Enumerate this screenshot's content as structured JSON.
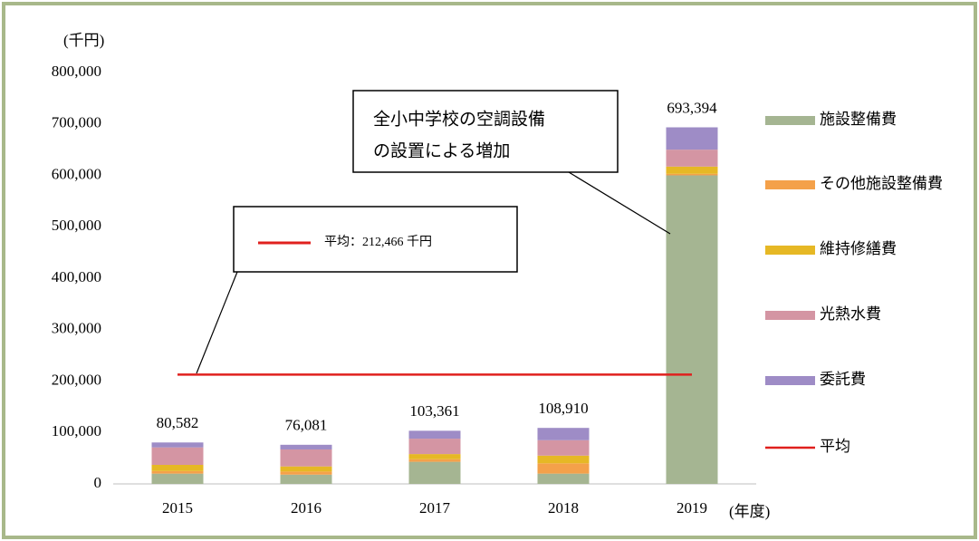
{
  "chart_data": {
    "type": "stacked_bar",
    "y_unit_label": "(千円)",
    "x_unit_label": "(年度)",
    "categories": [
      "2015",
      "2016",
      "2017",
      "2018",
      "2019"
    ],
    "series": [
      {
        "name": "施設整備費",
        "color": "#a5b592",
        "values": [
          20000,
          18000,
          43000,
          20000,
          600000
        ]
      },
      {
        "name": "その他施設整備費",
        "color": "#f4a14a",
        "values": [
          5000,
          6000,
          5000,
          20000,
          3000
        ]
      },
      {
        "name": "維持修繕費",
        "color": "#e6b825",
        "values": [
          12000,
          10000,
          10000,
          15000,
          14000
        ]
      },
      {
        "name": "光熱水費",
        "color": "#d495a3",
        "values": [
          34000,
          33000,
          30000,
          30000,
          33000
        ]
      },
      {
        "name": "委託費",
        "color": "#9e8cc6",
        "values": [
          9582,
          9081,
          15361,
          23910,
          43394
        ]
      }
    ],
    "totals": [
      80582,
      76081,
      103361,
      108910,
      693394
    ],
    "total_labels": [
      "80,582",
      "76,081",
      "103,361",
      "108,910",
      "693,394"
    ],
    "average": {
      "name": "平均",
      "value": 212466,
      "color": "#e0201e"
    },
    "annotations": [
      {
        "text": "平均：212,466 千円"
      },
      {
        "lines": [
          "全小中学校の空調設備",
          "の設置による増加"
        ]
      }
    ],
    "ylim": [
      0,
      800000
    ],
    "yticks": [
      0,
      {
        "value": 100000,
        "label": "100,000"
      },
      {
        "value": 200000,
        "label": "200,000"
      },
      {
        "value": 300000,
        "label": "300,000"
      },
      {
        "value": 400000,
        "label": "400,000"
      },
      {
        "value": 500000,
        "label": "500,000"
      },
      {
        "value": 600000,
        "label": "600,000"
      },
      {
        "value": 700000,
        "label": "700,000"
      },
      {
        "value": 800000,
        "label": "800,000"
      }
    ],
    "legend": "right",
    "grid": false
  }
}
